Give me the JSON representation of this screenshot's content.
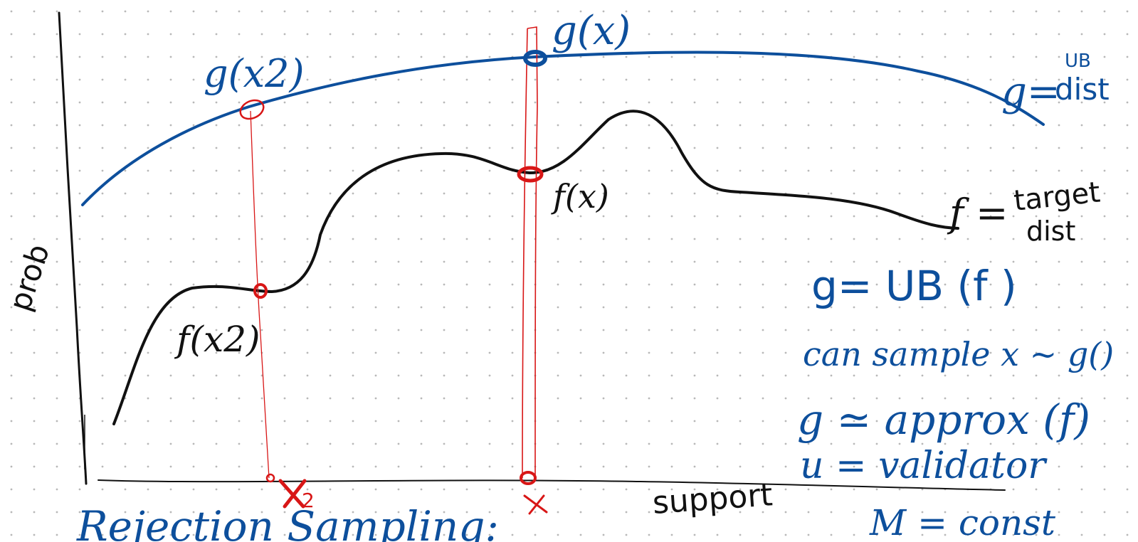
{
  "colors": {
    "background": "#ffffff",
    "dot_grid": "#b8b8b8",
    "blue_ink": "#0d4f9c",
    "black_ink": "#111111",
    "red_ink": "#d81616"
  },
  "axes": {
    "y_label": "prob",
    "x_label": "support"
  },
  "curves": {
    "g_label": "g(x)",
    "g_x2_label": "g(x2)",
    "f_label": "f(x)",
    "f_x2_label": "f(x2)"
  },
  "legend": {
    "g_prefix": "g=",
    "g_top": "UB",
    "g_bottom": "dist",
    "f_prefix": "f =",
    "f_top": "target",
    "f_bottom": "dist"
  },
  "samples": {
    "x2_label": "x2",
    "x_label": "x"
  },
  "notes": {
    "line1": "g= UB (f )",
    "line2": "can sample x ~ g()",
    "line3": "g ≃ approx (f)",
    "line4": "u = validator",
    "line5": "M = const"
  },
  "footer": {
    "title": "Rejection Sampling:"
  }
}
